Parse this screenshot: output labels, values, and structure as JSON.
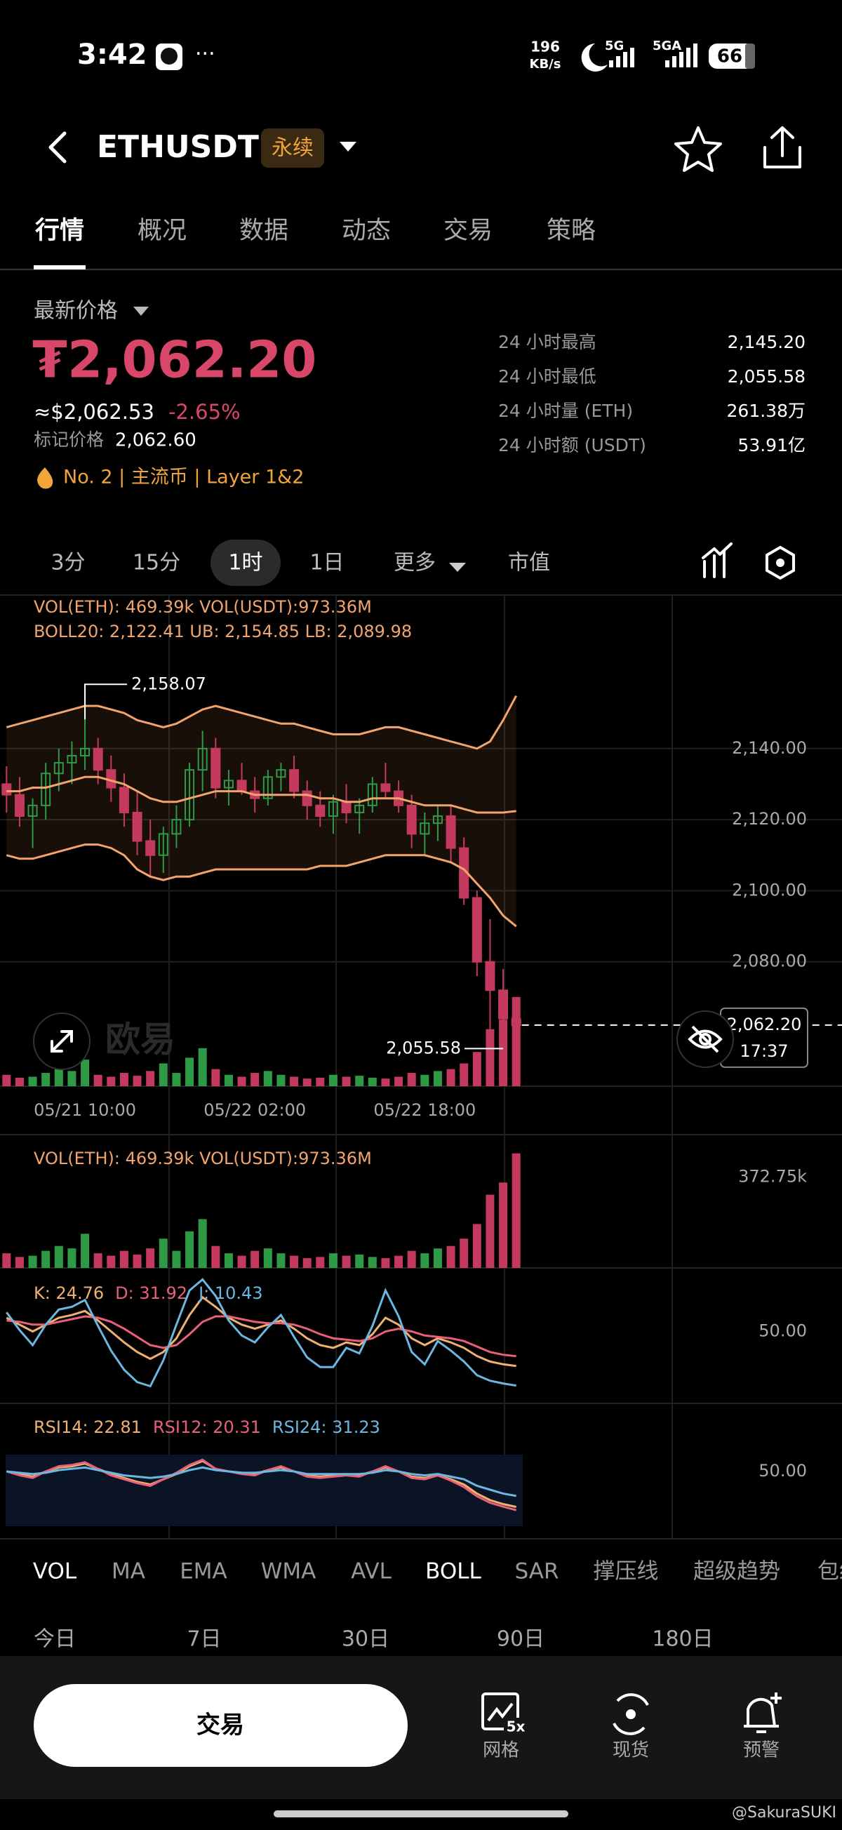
{
  "status_bar": {
    "time": "3:42",
    "speed_value": "196",
    "speed_unit": "KB/s",
    "network_1": "5G",
    "network_2": "5GA",
    "battery": "66"
  },
  "header": {
    "symbol": "ETHUSDT",
    "badge": "永续"
  },
  "tabs": [
    "行情",
    "概况",
    "数据",
    "动态",
    "交易",
    "策略"
  ],
  "price": {
    "label": "最新价格",
    "last": "₮2,062.20",
    "usd": "≈$2,062.53",
    "change": "-2.65%",
    "mark_label": "标记价格",
    "mark_value": "2,062.60",
    "tags": "No. 2  |  主流币  |  Layer 1&2"
  },
  "stats": [
    {
      "label": "24 小时最高",
      "value": "2,145.20"
    },
    {
      "label": "24 小时最低",
      "value": "2,055.58"
    },
    {
      "label": "24 小时量 (ETH)",
      "value": "261.38万"
    },
    {
      "label": "24 小时额 (USDT)",
      "value": "53.91亿"
    }
  ],
  "intervals": [
    "3分",
    "15分",
    "1时",
    "1日",
    "更多",
    "市值"
  ],
  "chart_logo": "欧易",
  "indicators": [
    "VOL",
    "MA",
    "EMA",
    "WMA",
    "AVL",
    "BOLL",
    "SAR",
    "撑压线",
    "超级趋势",
    "包络"
  ],
  "periods": [
    "今日",
    "7日",
    "30日",
    "90日",
    "180日"
  ],
  "bottom": {
    "trade": "交易",
    "grid_badge": "5x",
    "grid": "网格",
    "spot": "现货",
    "alert": "预警"
  },
  "watermark": "@SakuraSUKI",
  "chart_data": [
    {
      "type": "candlestick",
      "volume_label": "VOL(ETH): 469.39k VOL(USDT):973.36M",
      "boll_label": "BOLL20: 2,122.41  UB: 2,154.85  LB: 2,089.98",
      "x": [
        null,
        null,
        null,
        null,
        null,
        null,
        "05/21 10:00",
        null,
        null,
        null,
        null,
        null,
        null,
        null,
        null,
        null,
        null,
        null,
        null,
        "05/22 02:00",
        null,
        null,
        null,
        null,
        null,
        null,
        null,
        null,
        null,
        null,
        null,
        null,
        "05/22 18:00",
        null,
        null,
        null,
        null,
        null,
        null,
        null
      ],
      "open": [
        2130,
        2127,
        2121,
        2124,
        2133,
        2136,
        2138,
        2140,
        2134,
        2129,
        2122,
        2114,
        2110,
        2116,
        2120,
        2134,
        2140,
        2129,
        2131,
        2128,
        2126,
        2132,
        2134,
        2128,
        2124,
        2121,
        2125,
        2122,
        2124,
        2130,
        2128,
        2124,
        2116,
        2119,
        2121,
        2112,
        2098,
        2080,
        2072,
        2064
      ],
      "high": [
        2135,
        2132,
        2126,
        2136,
        2140,
        2142,
        2158.07,
        2143,
        2138,
        2133,
        2128,
        2120,
        2118,
        2124,
        2136,
        2145,
        2143,
        2134,
        2136,
        2132,
        2134,
        2136,
        2138,
        2131,
        2128,
        2127,
        2130,
        2126,
        2132,
        2136,
        2131,
        2127,
        2122,
        2124,
        2124,
        2115,
        2100,
        2092,
        2078,
        2070
      ],
      "low": [
        2122,
        2118,
        2112,
        2120,
        2128,
        2130,
        2134,
        2130,
        2125,
        2118,
        2110,
        2104,
        2105,
        2112,
        2118,
        2128,
        2126,
        2124,
        2127,
        2122,
        2124,
        2128,
        2126,
        2120,
        2118,
        2116,
        2119,
        2116,
        2122,
        2126,
        2122,
        2112,
        2110,
        2114,
        2108,
        2096,
        2076,
        2058,
        2055.58,
        2058
      ],
      "close": [
        2127,
        2121,
        2124,
        2133,
        2136,
        2138,
        2140,
        2134,
        2129,
        2122,
        2114,
        2110,
        2116,
        2120,
        2134,
        2140,
        2129,
        2131,
        2128,
        2126,
        2132,
        2134,
        2128,
        2124,
        2121,
        2125,
        2122,
        2124,
        2130,
        2128,
        2124,
        2116,
        2119,
        2121,
        2112,
        2098,
        2080,
        2072,
        2064,
        2062.2
      ],
      "colors": {
        "up": "#2e9a46",
        "down": "#c43a5e"
      },
      "bands": {
        "color": "#f2a46c",
        "upper": [
          2146,
          2147,
          2148,
          2149,
          2150,
          2151,
          2152,
          2152,
          2151,
          2150,
          2148,
          2147,
          2146,
          2147,
          2149,
          2151,
          2152,
          2151,
          2150,
          2149,
          2148,
          2147,
          2147,
          2146,
          2145,
          2144,
          2144,
          2144,
          2145,
          2146,
          2146,
          2145,
          2144,
          2143,
          2142,
          2141,
          2140,
          2142,
          2148,
          2154.85
        ],
        "middle": [
          2128,
          2128,
          2129,
          2129,
          2130,
          2131,
          2132,
          2132,
          2131,
          2130,
          2128,
          2126,
          2125,
          2125,
          2126,
          2127,
          2128,
          2128,
          2128,
          2127,
          2127,
          2127,
          2127,
          2127,
          2126,
          2126,
          2125,
          2125,
          2126,
          2126,
          2126,
          2125,
          2124,
          2124,
          2124,
          2123,
          2122,
          2122,
          2122,
          2122.41
        ],
        "lower": [
          2110,
          2109,
          2109,
          2110,
          2111,
          2112,
          2113,
          2113,
          2112,
          2110,
          2106,
          2104,
          2103,
          2104,
          2104,
          2105,
          2106,
          2106,
          2106,
          2106,
          2106,
          2106,
          2106,
          2106,
          2107,
          2107,
          2107,
          2108,
          2109,
          2110,
          2110,
          2110,
          2110,
          2109,
          2108,
          2106,
          2102,
          2098,
          2093,
          2089.98
        ]
      },
      "ylim": [
        2045,
        2183
      ],
      "yticks": [
        {
          "value": 2140,
          "label": "2,140.00"
        },
        {
          "value": 2120,
          "label": "2,120.00"
        },
        {
          "value": 2100,
          "label": "2,100.00"
        },
        {
          "value": 2080,
          "label": "2,080.00"
        }
      ],
      "high_label": "2,158.07",
      "low_label": "2,055.58",
      "last_label": "2,062.20",
      "countdown": "17:37",
      "grid": true
    },
    {
      "type": "bar",
      "label": "VOL(ETH): 469.39k VOL(USDT):973.36M",
      "values": [
        60,
        45,
        50,
        70,
        90,
        80,
        140,
        60,
        50,
        70,
        55,
        80,
        120,
        70,
        150,
        200,
        90,
        60,
        50,
        70,
        80,
        60,
        50,
        40,
        45,
        60,
        50,
        55,
        45,
        40,
        50,
        70,
        60,
        80,
        90,
        120,
        180,
        300,
        350,
        469.39
      ],
      "ylim": [
        0,
        480
      ],
      "yticks": [
        {
          "value": 372.75,
          "label": "372.75k"
        }
      ]
    },
    {
      "type": "line",
      "series": [
        {
          "name": "K: 24.76",
          "color": "#f0b070",
          "values": [
            60,
            55,
            50,
            55,
            60,
            62,
            65,
            58,
            50,
            42,
            35,
            30,
            35,
            45,
            62,
            75,
            68,
            60,
            55,
            52,
            55,
            58,
            52,
            45,
            40,
            38,
            42,
            40,
            48,
            60,
            55,
            45,
            40,
            45,
            42,
            38,
            32,
            28,
            26,
            24.76
          ]
        },
        {
          "name": "D: 31.92",
          "color": "#e8607a",
          "values": [
            58,
            57,
            55,
            55,
            57,
            59,
            61,
            60,
            57,
            52,
            46,
            40,
            38,
            40,
            48,
            57,
            61,
            61,
            59,
            57,
            56,
            56,
            55,
            52,
            48,
            45,
            44,
            43,
            45,
            50,
            52,
            50,
            47,
            46,
            45,
            43,
            39,
            35,
            33,
            31.92
          ]
        },
        {
          "name": "J: 10.43",
          "color": "#6ab8e0",
          "values": [
            64,
            51,
            40,
            55,
            66,
            68,
            73,
            54,
            36,
            22,
            13,
            10,
            29,
            55,
            80,
            88,
            76,
            58,
            47,
            42,
            53,
            62,
            46,
            31,
            24,
            24,
            38,
            34,
            54,
            80,
            61,
            35,
            26,
            43,
            36,
            28,
            18,
            14,
            12,
            10.43
          ]
        }
      ],
      "ylim": [
        0,
        100
      ],
      "yticks": [
        {
          "value": 50,
          "label": "50.00"
        }
      ]
    },
    {
      "type": "line",
      "series": [
        {
          "name": "RSI14: 22.81",
          "color": "#f0b070",
          "values": [
            50,
            48,
            46,
            50,
            53,
            54,
            56,
            52,
            48,
            45,
            42,
            40,
            44,
            48,
            54,
            58,
            52,
            50,
            49,
            48,
            51,
            53,
            50,
            47,
            46,
            47,
            48,
            47,
            50,
            53,
            50,
            46,
            45,
            47,
            44,
            40,
            33,
            28,
            25,
            22.81
          ]
        },
        {
          "name": "RSI12: 20.31",
          "color": "#e8607a",
          "values": [
            50,
            47,
            45,
            50,
            54,
            55,
            57,
            52,
            47,
            44,
            41,
            39,
            44,
            49,
            55,
            59,
            52,
            50,
            48,
            47,
            51,
            54,
            50,
            46,
            45,
            46,
            47,
            46,
            50,
            54,
            50,
            45,
            44,
            47,
            43,
            38,
            31,
            26,
            23,
            20.31
          ]
        },
        {
          "name": "RSI24: 31.23",
          "color": "#6ab8e0",
          "values": [
            50,
            49,
            48,
            49,
            51,
            52,
            53,
            51,
            49,
            47,
            46,
            45,
            46,
            48,
            51,
            53,
            51,
            50,
            49,
            49,
            50,
            51,
            50,
            48,
            48,
            48,
            48,
            48,
            49,
            51,
            50,
            48,
            47,
            48,
            46,
            44,
            39,
            36,
            33,
            31.23
          ]
        }
      ],
      "ylim": [
        0,
        100
      ],
      "yticks": [
        {
          "value": 50,
          "label": "50.00"
        }
      ]
    }
  ]
}
